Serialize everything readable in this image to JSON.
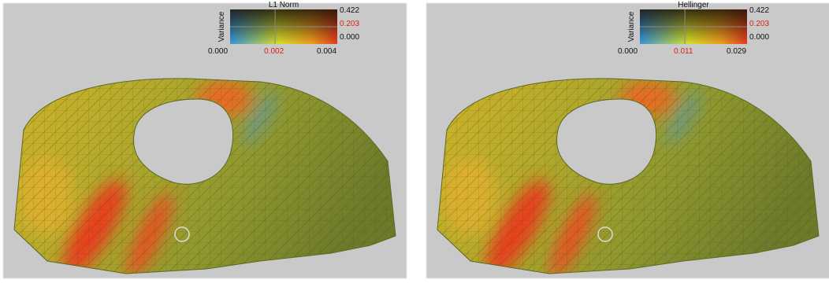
{
  "panels": [
    {
      "legend": {
        "title": "L1 Norm",
        "y_label": "Variance",
        "y_ticks": [
          "0.422",
          "0.203",
          "0.000"
        ],
        "x_ticks": [
          "0.000",
          "0.002",
          "0.004"
        ]
      }
    },
    {
      "legend": {
        "title": "Hellinger",
        "y_label": "Variance",
        "y_ticks": [
          "0.422",
          "0.203",
          "0.000"
        ],
        "x_ticks": [
          "0.000",
          "0.011",
          "0.029"
        ]
      }
    }
  ]
}
